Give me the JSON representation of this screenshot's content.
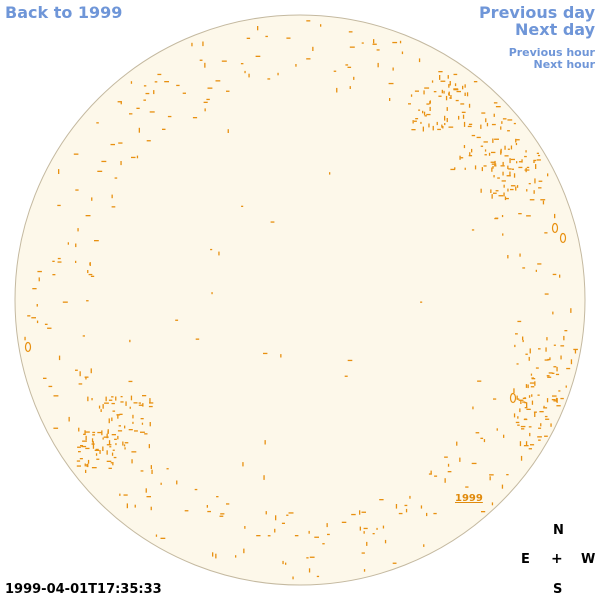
{
  "nav": {
    "back_label": "Back to 1999",
    "previous_day_label": "Previous day",
    "next_day_label": "Next day",
    "previous_hour_label": "Previous hour",
    "next_hour_label": "Next hour"
  },
  "disk": {
    "fill_color": "#fdf8ea",
    "outline_color": "#c4b9a0",
    "feature_color": "#e89010",
    "year_label": "1999"
  },
  "compass": {
    "north": "N",
    "east": "E",
    "center": "+",
    "west": "W",
    "south": "S"
  },
  "timestamp": "1999-04-01T17:35:33"
}
